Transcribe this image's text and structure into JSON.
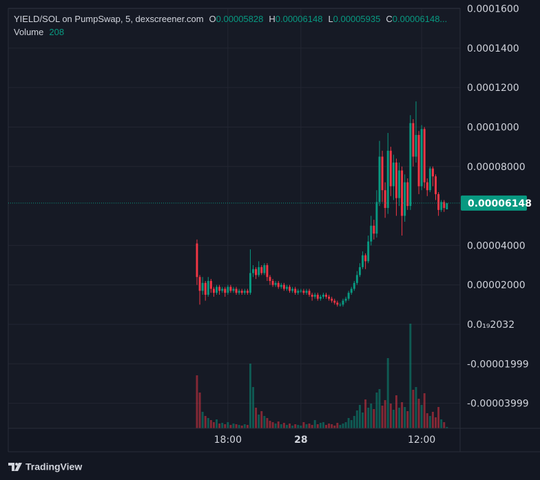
{
  "chart_data": {
    "type": "candlestick",
    "legend": {
      "symbol": "YIELD/SOL on PumpSwap, 5, dexscreener.com",
      "items": [
        {
          "key": "O",
          "value": "0.00005828"
        },
        {
          "key": "H",
          "value": "0.00006148"
        },
        {
          "key": "L",
          "value": "0.00005935"
        },
        {
          "key": "C",
          "value": "0.00006148..."
        }
      ],
      "volume_label": "Volume"
    },
    "categories": [
      null,
      null,
      null,
      null,
      null,
      null,
      null,
      null,
      null,
      null,
      null,
      null,
      null,
      null,
      null,
      null,
      null,
      null,
      null,
      null,
      null,
      null,
      null,
      null,
      null,
      null,
      null,
      null,
      null,
      null,
      null,
      null,
      null,
      null,
      null,
      null,
      null,
      null,
      null,
      null,
      null,
      null,
      null,
      null,
      null,
      null,
      null,
      null,
      null,
      null,
      null,
      null,
      null,
      null,
      null,
      null,
      null,
      null,
      null,
      null,
      null,
      null,
      null,
      null,
      null,
      null,
      null,
      null,
      null,
      null,
      null,
      null,
      null,
      null,
      null,
      null,
      null,
      null,
      null,
      null,
      null,
      null,
      null,
      null,
      null,
      null,
      null,
      null,
      null,
      null
    ],
    "open": [
      4.1e-05,
      2.4e-05,
      1.7e-05,
      2.1e-05,
      1.5e-05,
      2.2e-05,
      1.8e-05,
      1.6e-05,
      1.9e-05,
      1.7e-05,
      1.8e-05,
      1.6e-05,
      1.9e-05,
      1.7e-05,
      1.8e-05,
      1.6e-05,
      1.7e-05,
      1.6e-05,
      1.7e-05,
      1.6e-05,
      2.6e-05,
      2.8e-05,
      2.5e-05,
      2.9e-05,
      2.6e-05,
      3e-05,
      2.4e-05,
      2.2e-05,
      2e-05,
      2.1e-05,
      1.9e-05,
      2e-05,
      1.8e-05,
      1.9e-05,
      1.7e-05,
      1.8e-05,
      1.6e-05,
      1.7e-05,
      1.7e-05,
      1.6e-05,
      1.7e-05,
      1.5e-05,
      1.4e-05,
      1.5e-05,
      1.3e-05,
      1.4e-05,
      1.5e-05,
      1.4e-05,
      1.3e-05,
      1.2e-05,
      1.1e-05,
      1e-05,
      1e-05,
      1.2e-05,
      1.3e-05,
      1.6e-05,
      1.8e-05,
      2.1e-05,
      2.5e-05,
      2.9e-05,
      3.5e-05,
      3.2e-05,
      4.2e-05,
      5e-05,
      4.6e-05,
      6.2e-05,
      8.5e-05,
      6.8e-05,
      5.9e-05,
      8.8e-05,
      7e-05,
      8.2e-05,
      6.4e-05,
      7.8e-05,
      5.5e-05,
      7.2e-05,
      6e-05,
      0.000102,
      8.5e-05,
      9.6e-05,
      7e-05,
      9.9e-05,
      7.2e-05,
      6.8e-05,
      7.9e-05,
      7.5e-05,
      6.6e-05,
      5.8e-05,
      6.2e-05,
      5.828e-05
    ],
    "high": [
      4.3e-05,
      2.5e-05,
      2.4e-05,
      2.2e-05,
      2.4e-05,
      2.3e-05,
      1.9e-05,
      2e-05,
      2e-05,
      1.9e-05,
      1.9e-05,
      2e-05,
      2e-05,
      1.9e-05,
      1.9e-05,
      1.8e-05,
      1.8e-05,
      1.8e-05,
      1.8e-05,
      3.8e-05,
      3e-05,
      2.9e-05,
      3.2e-05,
      3e-05,
      3.1e-05,
      3.1e-05,
      2.5e-05,
      2.3e-05,
      2.2e-05,
      2.2e-05,
      2.1e-05,
      2.1e-05,
      2e-05,
      2e-05,
      1.9e-05,
      1.9e-05,
      1.8e-05,
      1.8e-05,
      1.8e-05,
      1.8e-05,
      1.8e-05,
      1.6e-05,
      1.6e-05,
      1.6e-05,
      1.5e-05,
      1.6e-05,
      1.6e-05,
      1.5e-05,
      1.4e-05,
      1.3e-05,
      1.2e-05,
      1.1e-05,
      1.3e-05,
      1.4e-05,
      1.7e-05,
      1.9e-05,
      2.2e-05,
      2.7e-05,
      3.1e-05,
      3.7e-05,
      3.6e-05,
      4.5e-05,
      5.5e-05,
      5.3e-05,
      6.8e-05,
      9.3e-05,
      8.8e-05,
      7.2e-05,
      9.7e-05,
      9e-05,
      8.6e-05,
      8.4e-05,
      8.2e-05,
      8e-05,
      7.6e-05,
      7.4e-05,
      0.000106,
      0.000104,
      0.000113,
      9.8e-05,
      0.000101,
      0.0001,
      7.4e-05,
      8e-05,
      8e-05,
      7.6e-05,
      6.7e-05,
      6.3e-05,
      6.3e-05,
      6.148e-05
    ],
    "low": [
      2e-05,
      1e-05,
      1.5e-05,
      1.2e-05,
      1.4e-05,
      1.6e-05,
      1.4e-05,
      1.5e-05,
      1.5e-05,
      1.6e-05,
      1.4e-05,
      1.5e-05,
      1.6e-05,
      1.6e-05,
      1.5e-05,
      1.5e-05,
      1.5e-05,
      1.5e-05,
      1.5e-05,
      1.5e-05,
      2.4e-05,
      2.3e-05,
      2.4e-05,
      2.5e-05,
      2.5e-05,
      2.2e-05,
      2e-05,
      1.9e-05,
      1.9e-05,
      1.8e-05,
      1.8e-05,
      1.7e-05,
      1.7e-05,
      1.6e-05,
      1.6e-05,
      1.5e-05,
      1.5e-05,
      1.6e-05,
      1.5e-05,
      1.5e-05,
      1.4e-05,
      1.2e-05,
      1.3e-05,
      1.2e-05,
      1.2e-05,
      1.3e-05,
      1.3e-05,
      1.2e-05,
      1.1e-05,
      1e-05,
      9e-06,
      9e-06,
      9e-06,
      1.1e-05,
      1.2e-05,
      1.5e-05,
      1.7e-05,
      2e-05,
      2.4e-05,
      2.8e-05,
      2.8e-05,
      3.1e-05,
      4e-05,
      4.3e-05,
      4.4e-05,
      6e-05,
      6.2e-05,
      5.4e-05,
      5.6e-05,
      6.5e-05,
      6.3e-05,
      5.5e-05,
      6e-05,
      4.5e-05,
      5.2e-05,
      5.8e-05,
      5.8e-05,
      8e-05,
      8.2e-05,
      6.6e-05,
      6.8e-05,
      6.9e-05,
      6.5e-05,
      6.7e-05,
      7e-05,
      6.3e-05,
      5.5e-05,
      5.7e-05,
      5.7e-05,
      5.935e-05
    ],
    "close": [
      2.4e-05,
      1.7e-05,
      2.1e-05,
      1.5e-05,
      2.2e-05,
      1.8e-05,
      1.6e-05,
      1.9e-05,
      1.7e-05,
      1.8e-05,
      1.6e-05,
      1.9e-05,
      1.7e-05,
      1.8e-05,
      1.6e-05,
      1.7e-05,
      1.6e-05,
      1.7e-05,
      1.6e-05,
      2.6e-05,
      2.8e-05,
      2.5e-05,
      2.9e-05,
      2.6e-05,
      3e-05,
      2.4e-05,
      2.2e-05,
      2e-05,
      2.1e-05,
      1.9e-05,
      2e-05,
      1.8e-05,
      1.9e-05,
      1.7e-05,
      1.8e-05,
      1.6e-05,
      1.7e-05,
      1.7e-05,
      1.6e-05,
      1.7e-05,
      1.5e-05,
      1.4e-05,
      1.5e-05,
      1.3e-05,
      1.4e-05,
      1.5e-05,
      1.4e-05,
      1.3e-05,
      1.2e-05,
      1.1e-05,
      1e-05,
      1e-05,
      1.2e-05,
      1.3e-05,
      1.6e-05,
      1.8e-05,
      2.1e-05,
      2.5e-05,
      2.9e-05,
      3.5e-05,
      3.2e-05,
      4.2e-05,
      5e-05,
      4.6e-05,
      6.2e-05,
      8.5e-05,
      6.8e-05,
      5.9e-05,
      8.8e-05,
      7e-05,
      8.2e-05,
      6.4e-05,
      7.8e-05,
      5.5e-05,
      7.2e-05,
      6e-05,
      0.000102,
      8.5e-05,
      9.6e-05,
      7e-05,
      9.9e-05,
      7.2e-05,
      6.8e-05,
      7.9e-05,
      7.5e-05,
      6.6e-05,
      5.8e-05,
      6.2e-05,
      5.9e-05,
      6.148e-05
    ],
    "volume": [
      7700,
      5200,
      2400,
      1800,
      1500,
      1200,
      900,
      1300,
      700,
      800,
      600,
      900,
      500,
      700,
      600,
      500,
      400,
      600,
      500,
      9400,
      6000,
      3000,
      2000,
      2500,
      1800,
      1500,
      1100,
      900,
      700,
      1000,
      600,
      800,
      500,
      700,
      400,
      600,
      500,
      400,
      900,
      600,
      700,
      500,
      1200,
      600,
      800,
      900,
      500,
      700,
      600,
      400,
      800,
      500,
      700,
      900,
      1500,
      1200,
      1800,
      2600,
      3400,
      2300,
      4200,
      3000,
      3600,
      2800,
      5200,
      5700,
      3300,
      4100,
      10200,
      3600,
      2700,
      4800,
      3000,
      3800,
      3100,
      2500,
      15200,
      5600,
      6000,
      4300,
      3400,
      5100,
      2200,
      1800,
      2400,
      1600,
      3100,
      1300,
      900,
      208
    ],
    "volume_lim": [
      0,
      16000
    ],
    "last_price": 6.148e-05,
    "up_color": "#089981",
    "down_color": "#f23645",
    "xlim": [
      -67.2,
      93.7
    ],
    "xticks": [
      {
        "value": 11,
        "label": "18:00"
      },
      {
        "value": 37,
        "label": "28"
      },
      {
        "value": 80,
        "label": "12:00"
      }
    ],
    "ylim": [
      -5.27e-05,
      0.0001602
    ],
    "yticks": [
      {
        "value": 0.00016,
        "label": "0.0001600"
      },
      {
        "value": 0.00014,
        "label": "0.0001400"
      },
      {
        "value": 0.00012,
        "label": "0.0001200"
      },
      {
        "value": 0.0001,
        "label": "0.0001000"
      },
      {
        "value": 8e-05,
        "label": "0.00008000"
      },
      {
        "value": 4e-05,
        "label": "0.00004000"
      },
      {
        "value": 2e-05,
        "label": "0.00002000"
      },
      {
        "value": 2.032e-20,
        "label": "0.0₁₉2032"
      },
      {
        "value": -1.999e-05,
        "label": "-0.00001999"
      },
      {
        "value": -3.999e-05,
        "label": "-0.00003999"
      }
    ],
    "grid": true,
    "branding": "TradingView"
  }
}
